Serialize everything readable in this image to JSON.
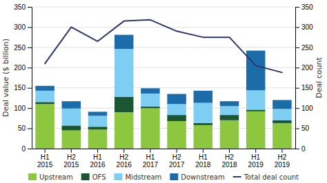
{
  "chart_data": {
    "type": "bar",
    "stacked": true,
    "grid": true,
    "legend": "bottom",
    "categories": [
      "H1\n2015",
      "H2\n2015",
      "H1\n2016",
      "H2\n2016",
      "H1\n2017",
      "H2\n2017",
      "H1\n2018",
      "H2\n2018",
      "H1\n2019",
      "H2\n2019"
    ],
    "series": [
      {
        "name": "Upstream",
        "type": "bar",
        "color": "#8dc63f",
        "values": [
          110,
          45,
          47,
          90,
          100,
          68,
          58,
          70,
          92,
          63
        ]
      },
      {
        "name": "OFS",
        "type": "bar",
        "color": "#1a5632",
        "values": [
          5,
          12,
          7,
          38,
          4,
          15,
          5,
          13,
          4,
          7
        ]
      },
      {
        "name": "Midstream",
        "type": "bar",
        "color": "#7ecef4",
        "values": [
          28,
          42,
          27,
          118,
          32,
          27,
          50,
          22,
          48,
          28
        ]
      },
      {
        "name": "Downstream",
        "type": "bar",
        "color": "#1b6ca8",
        "values": [
          12,
          18,
          10,
          35,
          13,
          25,
          30,
          12,
          98,
          22
        ]
      },
      {
        "name": "Total deal count",
        "type": "line",
        "axis": "y2",
        "color": "#2d3668",
        "values": [
          210,
          300,
          265,
          315,
          318,
          290,
          275,
          275,
          205,
          188
        ]
      }
    ],
    "y_label": "Deal value ($ billion)",
    "y2_label": "Deal count",
    "ylim": [
      0,
      350
    ],
    "yticks": [
      0,
      50,
      100,
      150,
      200,
      250,
      300,
      350
    ],
    "y2lim": [
      0,
      350
    ],
    "y2ticks": [
      0,
      50,
      100,
      150,
      200,
      250,
      300,
      350
    ]
  }
}
